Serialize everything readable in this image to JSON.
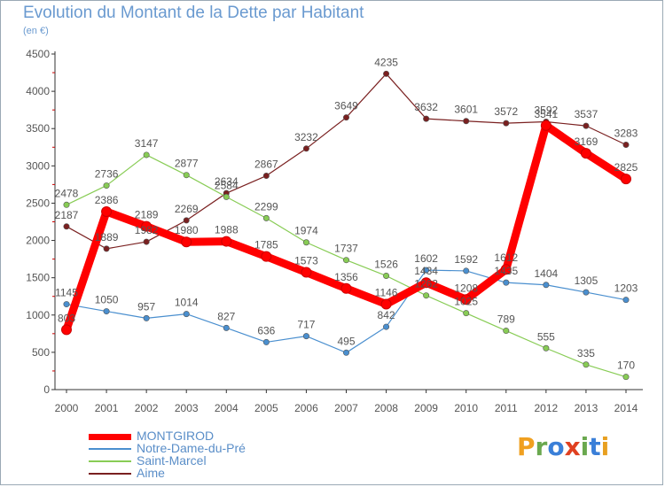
{
  "header": {
    "title": "Evolution du Montant de la Dette par Habitant",
    "subtitle": "(en €)"
  },
  "logo": {
    "letters": [
      "P",
      "r",
      "o",
      "x",
      "i",
      "t",
      "i"
    ],
    "colors": [
      "#f0a020",
      "#6aa84f",
      "#3a7fd8",
      "#e04020",
      "#6aa84f",
      "#3a7fd8",
      "#e8a020"
    ]
  },
  "chart_data": {
    "type": "line",
    "title": "Evolution du Montant de la Dette par Habitant",
    "subtitle": "(en €)",
    "xlabel": "",
    "ylabel": "",
    "x": [
      "2000",
      "2001",
      "2002",
      "2003",
      "2004",
      "2005",
      "2006",
      "2007",
      "2008",
      "2009",
      "2010",
      "2011",
      "2012",
      "2013",
      "2014"
    ],
    "ylim": [
      0,
      4500
    ],
    "yticks": [
      0,
      500,
      1000,
      1500,
      2000,
      2500,
      3000,
      3500,
      4000,
      4500
    ],
    "grid": false,
    "legend_position": "bottom-left",
    "series": [
      {
        "name": "MONTGIROD",
        "color": "#ff0000",
        "values": [
          803,
          2386,
          2189,
          1980,
          1988,
          1785,
          1573,
          1356,
          1146,
          1434,
          1208,
          1612,
          3541,
          3169,
          2825
        ]
      },
      {
        "name": "Notre-Dame-du-Pré",
        "color": "#4a8fcf",
        "values": [
          1145,
          1050,
          957,
          1014,
          827,
          636,
          717,
          495,
          842,
          1602,
          1592,
          1435,
          1404,
          1305,
          1203
        ]
      },
      {
        "name": "Saint-Marcel",
        "color": "#88cc55",
        "values": [
          2478,
          2736,
          3147,
          2877,
          2584,
          2299,
          1974,
          1737,
          1526,
          1262,
          1025,
          789,
          555,
          335,
          170
        ]
      },
      {
        "name": "Aime",
        "color": "#7a2020",
        "values": [
          2187,
          1889,
          1982,
          2269,
          2634,
          2867,
          3232,
          3649,
          4235,
          3632,
          3601,
          3572,
          3592,
          3537,
          3283
        ]
      }
    ]
  }
}
